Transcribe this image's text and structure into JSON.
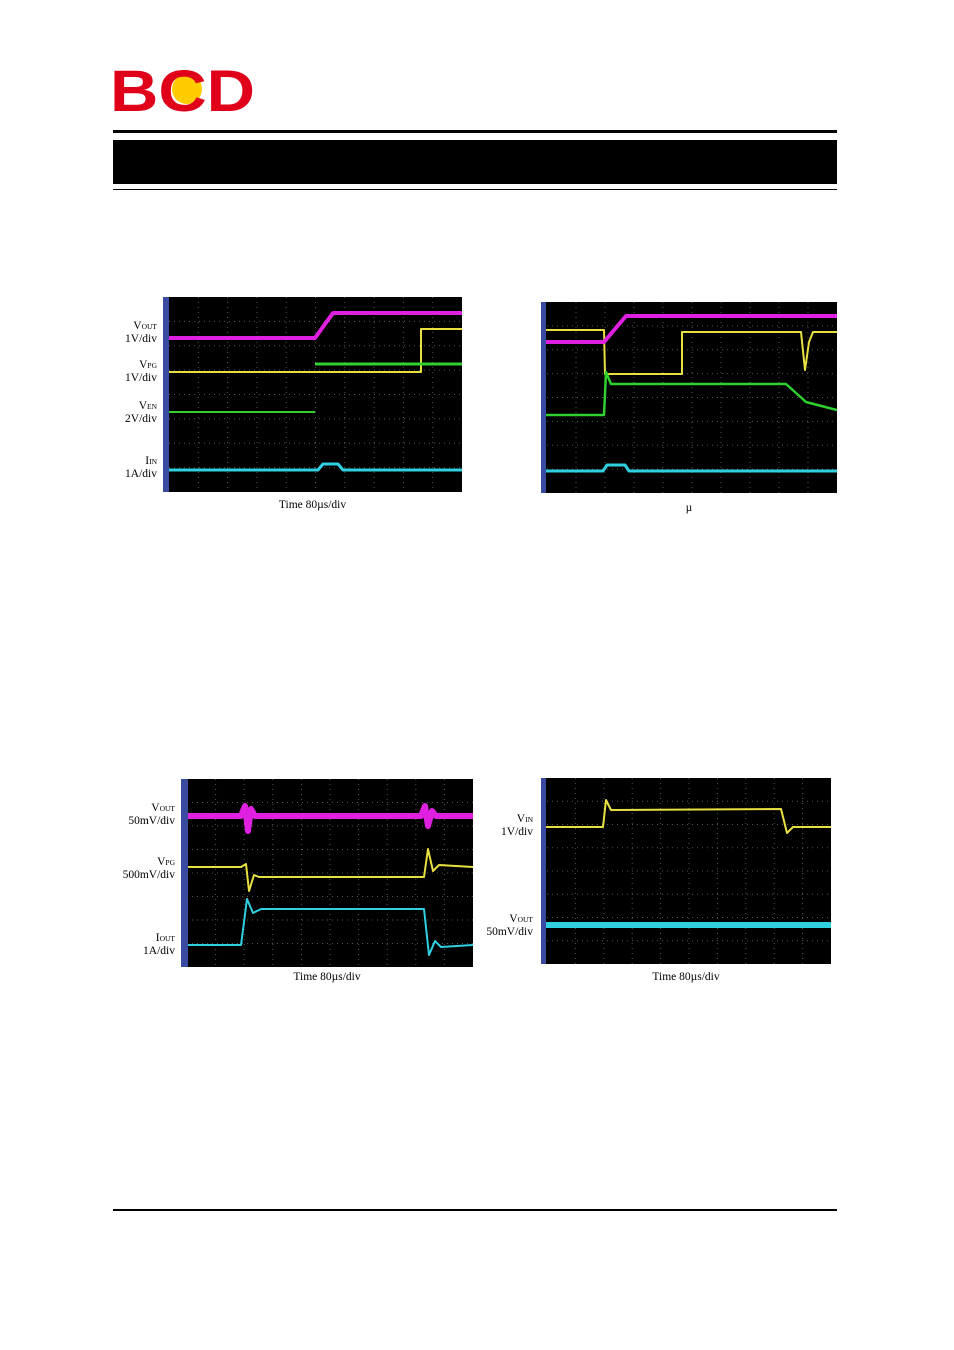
{
  "logo": "BCD",
  "figures": [
    {
      "labels": [
        {
          "name": "V",
          "sub": "OUT",
          "scale": "1V/div"
        },
        {
          "name": "V",
          "sub": "PG",
          "scale": "1V/div"
        },
        {
          "name": "V",
          "sub": "EN",
          "scale": "2V/div"
        },
        {
          "name": "I",
          "sub": "IN",
          "scale": "1A/div"
        }
      ],
      "caption": "Time 80µs/div"
    },
    {
      "caption": "µ"
    },
    {
      "labels": [
        {
          "name": "V",
          "sub": "OUT",
          "scale": "50mV/div"
        },
        {
          "name": "V",
          "sub": "PG",
          "scale": "500mV/div"
        },
        {
          "name": "I",
          "sub": "OUT",
          "scale": "1A/div"
        }
      ],
      "caption": "Time 80µs/div"
    },
    {
      "labels": [
        {
          "name": "V",
          "sub": "IN",
          "scale": "1V/div"
        },
        {
          "name": "V",
          "sub": "OUT",
          "scale": "50mV/div"
        }
      ],
      "caption": "Time 80µs/div"
    }
  ]
}
